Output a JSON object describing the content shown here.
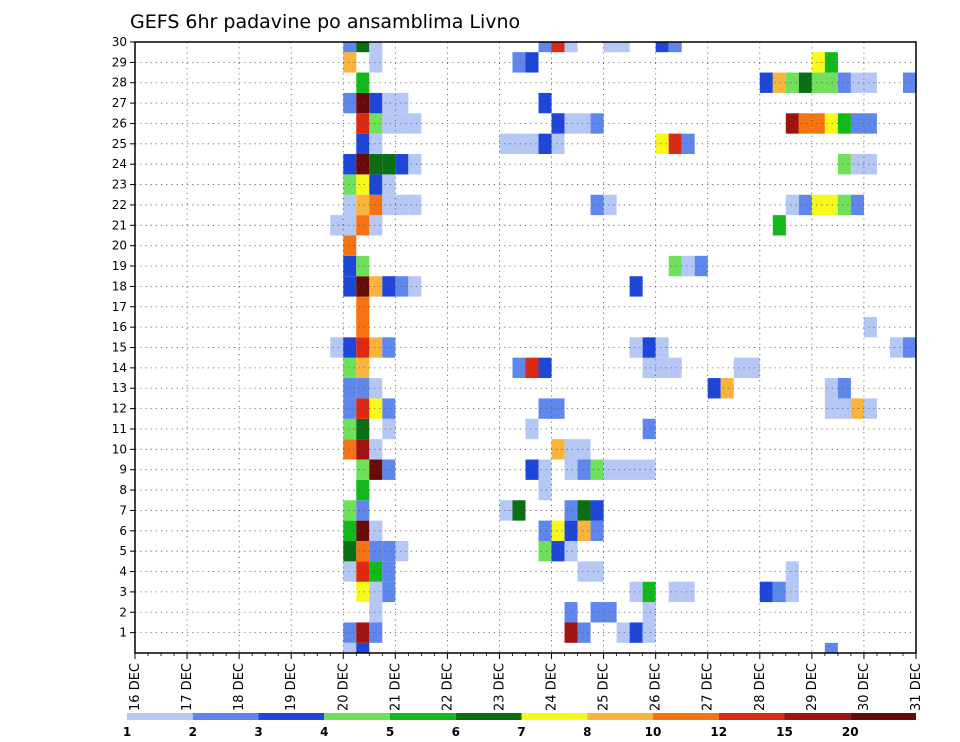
{
  "chart_data": {
    "type": "heatmap",
    "title": "GEFS 6hr padavine po ansamblima Livno",
    "xlabel": "",
    "ylabel": "",
    "x_ticks": [
      "16 DEC",
      "17 DEC",
      "18 DEC",
      "19 DEC",
      "20 DEC",
      "21 DEC",
      "22 DEC",
      "23 DEC",
      "24 DEC",
      "25 DEC",
      "26 DEC",
      "27 DEC",
      "28 DEC",
      "29 DEC",
      "30 DEC",
      "31 DEC"
    ],
    "y_ticks": [
      "1",
      "2",
      "3",
      "4",
      "5",
      "6",
      "7",
      "8",
      "9",
      "10",
      "11",
      "12",
      "13",
      "14",
      "15",
      "16",
      "17",
      "18",
      "19",
      "20",
      "21",
      "22",
      "23",
      "24",
      "25",
      "26",
      "27",
      "28",
      "29",
      "30"
    ],
    "xlim": [
      "16 DEC 00",
      "31 DEC 00"
    ],
    "ylim": [
      0,
      30
    ],
    "grid": true,
    "legend_position": "bottom",
    "colorbar": {
      "colors": [
        "#b4c7f5",
        "#5e86ec",
        "#1e46d8",
        "#6ee05a",
        "#13b91b",
        "#0a6e12",
        "#f8f81a",
        "#fab43c",
        "#f57312",
        "#dc2a12",
        "#a0140f",
        "#680a08"
      ],
      "labels": [
        "1",
        "2",
        "3",
        "4",
        "5",
        "6",
        "7",
        "8",
        "10",
        "12",
        "15",
        "20"
      ]
    },
    "cells": [
      [
        0,
        "20.00",
        1
      ],
      [
        0,
        "20.25",
        3
      ],
      [
        0,
        "29.25",
        2
      ],
      [
        1,
        "20.00",
        2
      ],
      [
        1,
        "20.25",
        11
      ],
      [
        1,
        "20.50",
        2
      ],
      [
        1,
        "24.25",
        11
      ],
      [
        1,
        "24.50",
        2
      ],
      [
        1,
        "25.25",
        1
      ],
      [
        1,
        "25.50",
        3
      ],
      [
        1,
        "25.75",
        1
      ],
      [
        2,
        "20.50",
        1
      ],
      [
        2,
        "24.25",
        2
      ],
      [
        2,
        "24.75",
        2
      ],
      [
        2,
        "25.00",
        2
      ],
      [
        2,
        "25.75",
        1
      ],
      [
        3,
        "20.25",
        7
      ],
      [
        3,
        "20.50",
        1
      ],
      [
        3,
        "20.75",
        2
      ],
      [
        3,
        "25.50",
        1
      ],
      [
        3,
        "25.75",
        5
      ],
      [
        3,
        "26.25",
        1
      ],
      [
        3,
        "26.50",
        1
      ],
      [
        3,
        "28.00",
        3
      ],
      [
        3,
        "28.25",
        2
      ],
      [
        3,
        "28.50",
        1
      ],
      [
        4,
        "20.00",
        1
      ],
      [
        4,
        "20.25",
        10
      ],
      [
        4,
        "20.50",
        5
      ],
      [
        4,
        "20.75",
        2
      ],
      [
        4,
        "24.50",
        1
      ],
      [
        4,
        "24.75",
        1
      ],
      [
        4,
        "28.50",
        1
      ],
      [
        5,
        "20.00",
        6
      ],
      [
        5,
        "20.25",
        9
      ],
      [
        5,
        "20.50",
        2
      ],
      [
        5,
        "20.75",
        2
      ],
      [
        5,
        "21.00",
        1
      ],
      [
        5,
        "23.75",
        4
      ],
      [
        5,
        "24.00",
        3
      ],
      [
        5,
        "24.25",
        1
      ],
      [
        6,
        "20.00",
        5
      ],
      [
        6,
        "20.25",
        12
      ],
      [
        6,
        "20.50",
        1
      ],
      [
        6,
        "23.75",
        2
      ],
      [
        6,
        "24.00",
        7
      ],
      [
        6,
        "24.25",
        3
      ],
      [
        6,
        "24.50",
        8
      ],
      [
        6,
        "24.75",
        2
      ],
      [
        7,
        "20.00",
        4
      ],
      [
        7,
        "20.25",
        2
      ],
      [
        7,
        "23.00",
        1
      ],
      [
        7,
        "23.25",
        6
      ],
      [
        7,
        "24.25",
        2
      ],
      [
        7,
        "24.50",
        6
      ],
      [
        7,
        "24.75",
        3
      ],
      [
        8,
        "20.25",
        5
      ],
      [
        8,
        "23.75",
        1
      ],
      [
        9,
        "20.25",
        4
      ],
      [
        9,
        "20.50",
        12
      ],
      [
        9,
        "20.75",
        2
      ],
      [
        9,
        "23.50",
        3
      ],
      [
        9,
        "23.75",
        1
      ],
      [
        9,
        "24.25",
        1
      ],
      [
        9,
        "24.50",
        2
      ],
      [
        9,
        "24.75",
        4
      ],
      [
        9,
        "25.00",
        1
      ],
      [
        9,
        "25.25",
        1
      ],
      [
        9,
        "25.50",
        1
      ],
      [
        9,
        "25.75",
        1
      ],
      [
        10,
        "20.00",
        9
      ],
      [
        10,
        "20.25",
        11
      ],
      [
        10,
        "20.50",
        1
      ],
      [
        10,
        "24.00",
        8
      ],
      [
        10,
        "24.25",
        1
      ],
      [
        10,
        "24.50",
        1
      ],
      [
        11,
        "20.00",
        4
      ],
      [
        11,
        "20.25",
        6
      ],
      [
        11,
        "20.75",
        1
      ],
      [
        11,
        "23.50",
        1
      ],
      [
        11,
        "25.75",
        2
      ],
      [
        12,
        "20.00",
        2
      ],
      [
        12,
        "20.25",
        10
      ],
      [
        12,
        "20.50",
        7
      ],
      [
        12,
        "20.75",
        2
      ],
      [
        12,
        "23.75",
        2
      ],
      [
        12,
        "24.00",
        2
      ],
      [
        12,
        "29.25",
        1
      ],
      [
        12,
        "29.50",
        1
      ],
      [
        12,
        "29.75",
        8
      ],
      [
        12,
        "30.00",
        1
      ],
      [
        13,
        "20.00",
        2
      ],
      [
        13,
        "20.25",
        2
      ],
      [
        13,
        "20.50",
        1
      ],
      [
        13,
        "27.00",
        3
      ],
      [
        13,
        "27.25",
        8
      ],
      [
        13,
        "29.25",
        1
      ],
      [
        13,
        "29.50",
        2
      ],
      [
        14,
        "20.00",
        4
      ],
      [
        14,
        "20.25",
        8
      ],
      [
        14,
        "23.25",
        2
      ],
      [
        14,
        "23.50",
        10
      ],
      [
        14,
        "23.75",
        3
      ],
      [
        14,
        "25.75",
        1
      ],
      [
        14,
        "26.00",
        1
      ],
      [
        14,
        "26.25",
        1
      ],
      [
        14,
        "27.50",
        1
      ],
      [
        14,
        "27.75",
        1
      ],
      [
        15,
        "19.75",
        1
      ],
      [
        15,
        "20.00",
        3
      ],
      [
        15,
        "20.25",
        10
      ],
      [
        15,
        "20.50",
        8
      ],
      [
        15,
        "20.75",
        2
      ],
      [
        15,
        "25.50",
        1
      ],
      [
        15,
        "25.75",
        3
      ],
      [
        15,
        "26.00",
        1
      ],
      [
        15,
        "30.50",
        1
      ],
      [
        15,
        "30.75",
        2
      ],
      [
        16,
        "20.25",
        9
      ],
      [
        16,
        "30.00",
        1
      ],
      [
        17,
        "20.25",
        9
      ],
      [
        18,
        "20.00",
        3
      ],
      [
        18,
        "20.25",
        12
      ],
      [
        18,
        "20.50",
        8
      ],
      [
        18,
        "20.75",
        3
      ],
      [
        18,
        "21.00",
        2
      ],
      [
        18,
        "21.25",
        1
      ],
      [
        18,
        "25.50",
        3
      ],
      [
        19,
        "20.00",
        3
      ],
      [
        19,
        "20.25",
        4
      ],
      [
        19,
        "26.25",
        4
      ],
      [
        19,
        "26.50",
        1
      ],
      [
        19,
        "26.75",
        2
      ],
      [
        20,
        "20.00",
        9
      ],
      [
        21,
        "19.75",
        1
      ],
      [
        21,
        "20.00",
        1
      ],
      [
        21,
        "20.25",
        9
      ],
      [
        21,
        "20.50",
        1
      ],
      [
        21,
        "28.25",
        5
      ],
      [
        22,
        "20.00",
        1
      ],
      [
        22,
        "20.25",
        8
      ],
      [
        22,
        "20.50",
        9
      ],
      [
        22,
        "20.75",
        1
      ],
      [
        22,
        "21.00",
        1
      ],
      [
        22,
        "21.25",
        1
      ],
      [
        22,
        "24.75",
        2
      ],
      [
        22,
        "25.00",
        1
      ],
      [
        22,
        "28.50",
        1
      ],
      [
        22,
        "28.75",
        2
      ],
      [
        22,
        "29.00",
        7
      ],
      [
        22,
        "29.25",
        7
      ],
      [
        22,
        "29.50",
        4
      ],
      [
        22,
        "29.75",
        2
      ],
      [
        23,
        "20.00",
        4
      ],
      [
        23,
        "20.25",
        7
      ],
      [
        23,
        "20.50",
        3
      ],
      [
        23,
        "20.75",
        1
      ],
      [
        24,
        "20.00",
        3
      ],
      [
        24,
        "20.25",
        12
      ],
      [
        24,
        "20.50",
        6
      ],
      [
        24,
        "20.75",
        6
      ],
      [
        24,
        "21.00",
        3
      ],
      [
        24,
        "21.25",
        1
      ],
      [
        24,
        "29.50",
        4
      ],
      [
        24,
        "29.75",
        1
      ],
      [
        24,
        "30.00",
        1
      ],
      [
        25,
        "20.25",
        3
      ],
      [
        25,
        "20.50",
        1
      ],
      [
        25,
        "23.00",
        1
      ],
      [
        25,
        "23.25",
        1
      ],
      [
        25,
        "23.50",
        1
      ],
      [
        25,
        "23.75",
        3
      ],
      [
        25,
        "24.00",
        1
      ],
      [
        25,
        "26.00",
        7
      ],
      [
        25,
        "26.25",
        10
      ],
      [
        25,
        "26.50",
        2
      ],
      [
        26,
        "20.25",
        10
      ],
      [
        26,
        "20.50",
        4
      ],
      [
        26,
        "20.75",
        1
      ],
      [
        26,
        "21.00",
        1
      ],
      [
        26,
        "21.25",
        1
      ],
      [
        26,
        "24.00",
        3
      ],
      [
        26,
        "24.25",
        1
      ],
      [
        26,
        "24.50",
        1
      ],
      [
        26,
        "24.75",
        2
      ],
      [
        26,
        "28.50",
        11
      ],
      [
        26,
        "28.75",
        9
      ],
      [
        26,
        "29.00",
        9
      ],
      [
        26,
        "29.25",
        7
      ],
      [
        26,
        "29.50",
        5
      ],
      [
        26,
        "29.75",
        2
      ],
      [
        26,
        "30.00",
        2
      ],
      [
        27,
        "20.00",
        2
      ],
      [
        27,
        "20.25",
        12
      ],
      [
        27,
        "20.50",
        3
      ],
      [
        27,
        "20.75",
        1
      ],
      [
        27,
        "21.00",
        1
      ],
      [
        27,
        "23.75",
        3
      ],
      [
        28,
        "20.25",
        5
      ],
      [
        28,
        "28.00",
        3
      ],
      [
        28,
        "28.25",
        8
      ],
      [
        28,
        "28.50",
        4
      ],
      [
        28,
        "28.75",
        6
      ],
      [
        28,
        "29.00",
        4
      ],
      [
        28,
        "29.25",
        4
      ],
      [
        28,
        "29.50",
        2
      ],
      [
        28,
        "29.75",
        1
      ],
      [
        28,
        "30.00",
        1
      ],
      [
        28,
        "30.75",
        2
      ],
      [
        29,
        "20.00",
        8
      ],
      [
        29,
        "20.50",
        1
      ],
      [
        29,
        "23.25",
        2
      ],
      [
        29,
        "23.50",
        3
      ],
      [
        29,
        "29.00",
        7
      ],
      [
        29,
        "29.25",
        5
      ],
      [
        30,
        "20.00",
        2
      ],
      [
        30,
        "20.25",
        6
      ],
      [
        30,
        "20.50",
        1
      ],
      [
        30,
        "23.75",
        2
      ],
      [
        30,
        "24.00",
        10
      ],
      [
        30,
        "24.25",
        1
      ],
      [
        30,
        "25.00",
        1
      ],
      [
        30,
        "25.25",
        1
      ],
      [
        30,
        "26.00",
        3
      ],
      [
        30,
        "26.25",
        2
      ]
    ]
  }
}
